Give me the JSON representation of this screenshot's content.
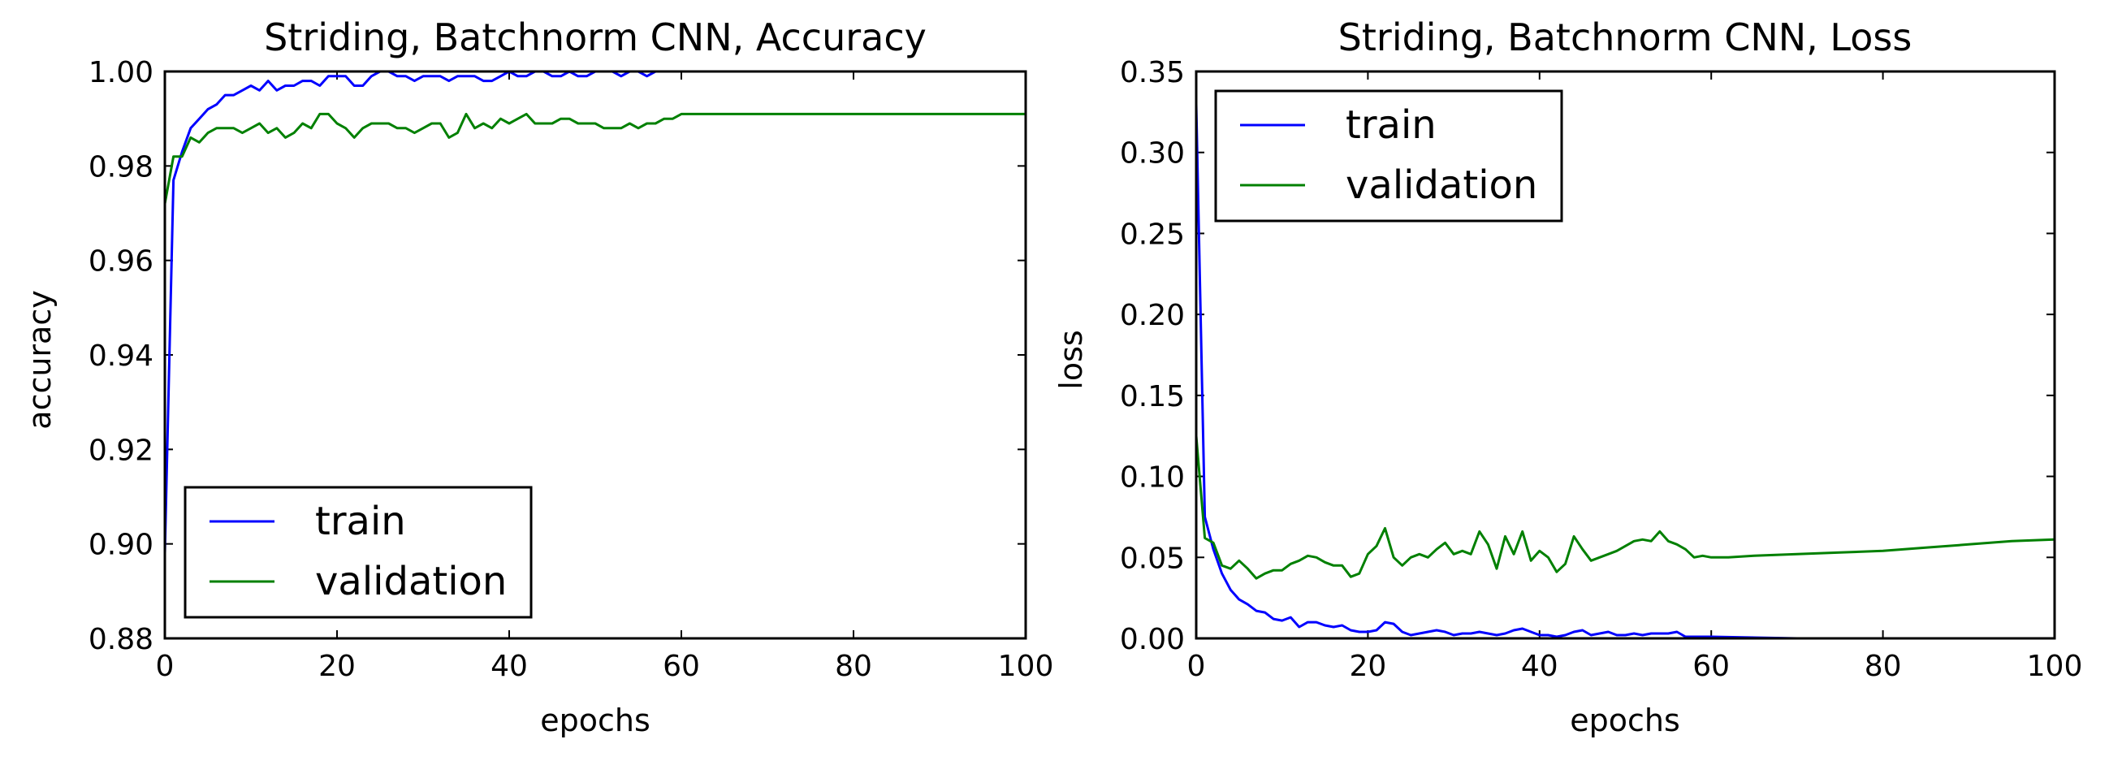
{
  "chart_data": [
    {
      "type": "line",
      "title": "Striding, Batchnorm CNN, Accuracy",
      "xlabel": "epochs",
      "ylabel": "accuracy",
      "xlim": [
        0,
        100
      ],
      "ylim": [
        0.88,
        1.0
      ],
      "xticks": [
        "0",
        "20",
        "40",
        "60",
        "80",
        "100"
      ],
      "yticks": [
        "0.88",
        "0.90",
        "0.92",
        "0.94",
        "0.96",
        "0.98",
        "1.00"
      ],
      "legend": "lower-left",
      "grid": false,
      "series": [
        {
          "name": "train",
          "color": "#0000ff",
          "x": [
            0,
            1,
            2,
            3,
            4,
            5,
            6,
            7,
            8,
            9,
            10,
            11,
            12,
            13,
            14,
            15,
            16,
            17,
            18,
            19,
            20,
            21,
            22,
            23,
            24,
            25,
            26,
            27,
            28,
            29,
            30,
            31,
            32,
            33,
            34,
            35,
            36,
            37,
            38,
            39,
            40,
            41,
            42,
            43,
            44,
            45,
            46,
            47,
            48,
            49,
            50,
            51,
            52,
            53,
            54,
            55,
            56,
            57,
            58,
            59,
            60
          ],
          "y": [
            0.898,
            0.977,
            0.983,
            0.988,
            0.99,
            0.992,
            0.993,
            0.995,
            0.995,
            0.996,
            0.997,
            0.996,
            0.998,
            0.996,
            0.997,
            0.997,
            0.998,
            0.998,
            0.997,
            0.999,
            0.999,
            0.999,
            0.997,
            0.997,
            0.999,
            1.0,
            1.0,
            0.999,
            0.999,
            0.998,
            0.999,
            0.999,
            0.999,
            0.998,
            0.999,
            0.999,
            0.999,
            0.998,
            0.998,
            0.999,
            1.0,
            0.999,
            0.999,
            1.0,
            1.0,
            0.999,
            0.999,
            1.0,
            0.999,
            0.999,
            1.0,
            1.0,
            1.0,
            0.999,
            1.0,
            1.0,
            0.999,
            1.0,
            1.0,
            1.0,
            1.0
          ]
        },
        {
          "name": "validation",
          "color": "#008000",
          "x": [
            0,
            1,
            2,
            3,
            4,
            5,
            6,
            7,
            8,
            9,
            10,
            11,
            12,
            13,
            14,
            15,
            16,
            17,
            18,
            19,
            20,
            21,
            22,
            23,
            24,
            25,
            26,
            27,
            28,
            29,
            30,
            31,
            32,
            33,
            34,
            35,
            36,
            37,
            38,
            39,
            40,
            41,
            42,
            43,
            44,
            45,
            46,
            47,
            48,
            49,
            50,
            51,
            52,
            53,
            54,
            55,
            56,
            57,
            58,
            59,
            60,
            62,
            65,
            70,
            72,
            75,
            78,
            80,
            82,
            84,
            86,
            90,
            94,
            96,
            98,
            100
          ],
          "y": [
            0.972,
            0.982,
            0.982,
            0.986,
            0.985,
            0.987,
            0.988,
            0.988,
            0.988,
            0.987,
            0.988,
            0.989,
            0.987,
            0.988,
            0.986,
            0.987,
            0.989,
            0.988,
            0.991,
            0.991,
            0.989,
            0.988,
            0.986,
            0.988,
            0.989,
            0.989,
            0.989,
            0.988,
            0.988,
            0.987,
            0.988,
            0.989,
            0.989,
            0.986,
            0.987,
            0.991,
            0.988,
            0.989,
            0.988,
            0.99,
            0.989,
            0.99,
            0.991,
            0.989,
            0.989,
            0.989,
            0.99,
            0.99,
            0.989,
            0.989,
            0.989,
            0.988,
            0.988,
            0.988,
            0.989,
            0.988,
            0.989,
            0.989,
            0.99,
            0.99,
            0.991,
            0.991,
            0.991,
            0.991,
            0.991,
            0.991,
            0.991,
            0.991,
            0.991,
            0.991,
            0.991,
            0.991,
            0.991,
            0.991,
            0.991,
            0.991
          ]
        }
      ]
    },
    {
      "type": "line",
      "title": "Striding, Batchnorm CNN, Loss",
      "xlabel": "epochs",
      "ylabel": "loss",
      "xlim": [
        0,
        100
      ],
      "ylim": [
        0.0,
        0.35
      ],
      "xticks": [
        "0",
        "20",
        "40",
        "60",
        "80",
        "100"
      ],
      "yticks": [
        "0.00",
        "0.05",
        "0.10",
        "0.15",
        "0.20",
        "0.25",
        "0.30",
        "0.35"
      ],
      "legend": "upper-left",
      "grid": false,
      "series": [
        {
          "name": "train",
          "color": "#0000ff",
          "x": [
            0,
            1,
            2,
            3,
            4,
            5,
            6,
            7,
            8,
            9,
            10,
            11,
            12,
            13,
            14,
            15,
            16,
            17,
            18,
            19,
            20,
            21,
            22,
            23,
            24,
            25,
            26,
            27,
            28,
            29,
            30,
            31,
            32,
            33,
            34,
            35,
            36,
            37,
            38,
            39,
            40,
            41,
            42,
            43,
            44,
            45,
            46,
            47,
            48,
            49,
            50,
            51,
            52,
            53,
            54,
            55,
            56,
            57,
            58,
            60,
            70,
            80,
            90,
            100
          ],
          "y": [
            0.33,
            0.075,
            0.055,
            0.04,
            0.03,
            0.024,
            0.021,
            0.017,
            0.016,
            0.012,
            0.011,
            0.013,
            0.007,
            0.01,
            0.01,
            0.008,
            0.007,
            0.008,
            0.005,
            0.004,
            0.004,
            0.005,
            0.01,
            0.009,
            0.004,
            0.002,
            0.003,
            0.004,
            0.005,
            0.004,
            0.002,
            0.003,
            0.003,
            0.004,
            0.003,
            0.002,
            0.003,
            0.005,
            0.006,
            0.004,
            0.002,
            0.002,
            0.001,
            0.002,
            0.004,
            0.005,
            0.002,
            0.003,
            0.004,
            0.002,
            0.002,
            0.003,
            0.002,
            0.003,
            0.003,
            0.003,
            0.004,
            0.001,
            0.001,
            0.001,
            0.0,
            0.0,
            0.0,
            0.0
          ]
        },
        {
          "name": "validation",
          "color": "#008000",
          "x": [
            0,
            1,
            2,
            3,
            4,
            5,
            6,
            7,
            8,
            9,
            10,
            11,
            12,
            13,
            14,
            15,
            16,
            17,
            18,
            19,
            20,
            21,
            22,
            23,
            24,
            25,
            26,
            27,
            28,
            29,
            30,
            31,
            32,
            33,
            34,
            35,
            36,
            37,
            38,
            39,
            40,
            41,
            42,
            43,
            44,
            45,
            46,
            47,
            48,
            49,
            50,
            51,
            52,
            53,
            54,
            55,
            56,
            57,
            58,
            59,
            60,
            62,
            65,
            70,
            75,
            80,
            85,
            90,
            95,
            100
          ],
          "y": [
            0.125,
            0.062,
            0.059,
            0.045,
            0.043,
            0.048,
            0.043,
            0.037,
            0.04,
            0.042,
            0.042,
            0.046,
            0.048,
            0.051,
            0.05,
            0.047,
            0.045,
            0.045,
            0.038,
            0.04,
            0.052,
            0.057,
            0.068,
            0.05,
            0.045,
            0.05,
            0.052,
            0.05,
            0.055,
            0.059,
            0.052,
            0.054,
            0.052,
            0.066,
            0.058,
            0.043,
            0.063,
            0.052,
            0.066,
            0.048,
            0.054,
            0.05,
            0.041,
            0.046,
            0.063,
            0.055,
            0.048,
            0.05,
            0.052,
            0.054,
            0.057,
            0.06,
            0.061,
            0.06,
            0.066,
            0.06,
            0.058,
            0.055,
            0.05,
            0.051,
            0.05,
            0.05,
            0.051,
            0.052,
            0.053,
            0.054,
            0.056,
            0.058,
            0.06,
            0.061
          ]
        }
      ]
    }
  ]
}
